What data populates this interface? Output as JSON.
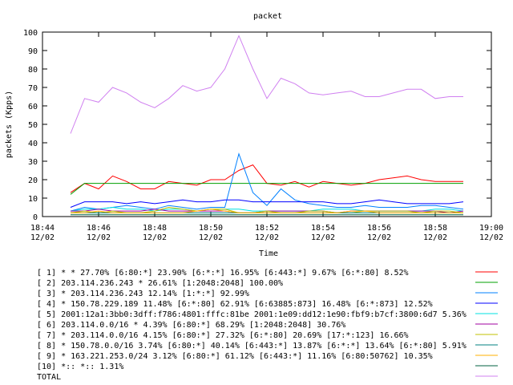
{
  "chart_data": {
    "type": "line",
    "title": "packet",
    "xlabel": "Time",
    "ylabel": "packets (Kpps)",
    "ylim": [
      0,
      100
    ],
    "xlim": [
      "18:44",
      "19:00"
    ],
    "yticks": [
      0,
      10,
      20,
      30,
      40,
      50,
      60,
      70,
      80,
      90,
      100
    ],
    "xticks": [
      {
        "time": "18:44",
        "date": "12/02"
      },
      {
        "time": "18:46",
        "date": "12/02"
      },
      {
        "time": "18:48",
        "date": "12/02"
      },
      {
        "time": "18:50",
        "date": "12/02"
      },
      {
        "time": "18:52",
        "date": "12/02"
      },
      {
        "time": "18:54",
        "date": "12/02"
      },
      {
        "time": "18:56",
        "date": "12/02"
      },
      {
        "time": "18:58",
        "date": "12/02"
      },
      {
        "time": "19:00",
        "date": "12/02"
      }
    ],
    "grid": false,
    "legend_position": "bottom",
    "x": [
      "18:45:00",
      "18:45:30",
      "18:46:00",
      "18:46:30",
      "18:47:00",
      "18:47:30",
      "18:48:00",
      "18:48:30",
      "18:49:00",
      "18:49:30",
      "18:50:00",
      "18:50:30",
      "18:51:00",
      "18:51:30",
      "18:52:00",
      "18:52:30",
      "18:53:00",
      "18:53:30",
      "18:54:00",
      "18:54:30",
      "18:55:00",
      "18:55:30",
      "18:56:00",
      "18:56:30",
      "18:57:00",
      "18:57:30",
      "18:58:00",
      "18:58:30",
      "18:59:00"
    ],
    "series": [
      {
        "name": "[ 1] * * 27.70%  [6:80:*] 23.90% [6:*:*] 16.95% [6:443:*] 9.67% [6:*:80] 8.52%",
        "color": "#ff0000",
        "values": [
          13,
          18,
          15,
          22,
          19,
          15,
          15,
          19,
          18,
          17,
          20,
          20,
          25,
          28,
          18,
          17,
          19,
          16,
          19,
          18,
          17,
          18,
          20,
          21,
          22,
          20,
          19,
          19,
          19
        ]
      },
      {
        "name": "[ 2] 203.114.236.243 * 26.61%  [1:2048:2048] 100.00%",
        "color": "#00a000",
        "values": [
          12,
          18,
          18,
          18,
          18,
          18,
          18,
          18,
          18,
          18,
          18,
          18,
          18,
          18,
          18,
          18,
          18,
          18,
          18,
          18,
          18,
          18,
          18,
          18,
          18,
          18,
          18,
          18,
          18
        ]
      },
      {
        "name": "[ 3] * 203.114.236.243 12.14%  [1:*:*] 92.99%",
        "color": "#0080ff",
        "values": [
          3,
          5,
          4,
          5,
          6,
          5,
          4,
          6,
          5,
          4,
          5,
          5,
          34,
          13,
          6,
          15,
          9,
          7,
          6,
          5,
          5,
          6,
          5,
          5,
          5,
          6,
          6,
          5,
          4
        ]
      },
      {
        "name": "[ 4] * 150.78.229.189 11.48%  [6:*:80] 62.91% [6:63885:873] 16.48% [6:*:873] 12.52%",
        "color": "#0000ff",
        "values": [
          5,
          8,
          8,
          8,
          7,
          8,
          7,
          8,
          9,
          8,
          8,
          9,
          9,
          8,
          8,
          8,
          8,
          8,
          8,
          7,
          7,
          8,
          9,
          8,
          7,
          7,
          7,
          7,
          8
        ]
      },
      {
        "name": "[ 5] 2001:12a1:3bb0:3dff:f786:4801:fffc:81be 2001:1e09:dd12:1e90:fbf9:b7cf:3800:6d7 5.36%",
        "color": "#00e0e0",
        "values": [
          3,
          4,
          4,
          5,
          4,
          4,
          3,
          4,
          4,
          3,
          4,
          4,
          4,
          3,
          3,
          3,
          3,
          3,
          4,
          4,
          4,
          3,
          3,
          3,
          3,
          3,
          4,
          4,
          3
        ]
      },
      {
        "name": "[ 6] 203.114.0.0/16 * 4.39%  [6:80:*] 68.29% [1:2048:2048] 30.76%",
        "color": "#a000a0",
        "values": [
          3,
          3,
          4,
          3,
          3,
          3,
          4,
          3,
          3,
          3,
          3,
          3,
          2,
          2,
          3,
          3,
          3,
          3,
          3,
          2,
          3,
          3,
          3,
          3,
          3,
          3,
          3,
          2,
          3
        ]
      },
      {
        "name": "[ 7] * 203.114.0.0/16 4.15%  [6:80:*] 27.32% [6:*:80] 20.69% [17:*:123] 16.66%",
        "color": "#c0c000",
        "values": [
          2,
          3,
          2,
          3,
          2,
          2,
          3,
          5,
          4,
          3,
          4,
          4,
          2,
          2,
          3,
          2,
          2,
          3,
          3,
          2,
          2,
          3,
          3,
          3,
          3,
          2,
          3,
          3,
          2
        ]
      },
      {
        "name": "[ 8] * 150.78.0.0/16 3.74%  [6:80:*] 40.14% [6:443:*] 13.87% [6:*:*] 13.64% [6:*:80] 5.91%",
        "color": "#008080",
        "values": [
          2,
          2,
          2,
          2,
          2,
          2,
          2,
          2,
          2,
          2,
          2,
          2,
          2,
          2,
          2,
          2,
          2,
          2,
          2,
          2,
          2,
          2,
          2,
          2,
          2,
          2,
          2,
          2,
          2
        ]
      },
      {
        "name": "[ 9] * 163.221.253.0/24 3.12%  [6:80:*] 61.12% [6:443:*] 11.16% [6:80:50762] 10.35%",
        "color": "#ffb000",
        "values": [
          2,
          2,
          3,
          2,
          2,
          2,
          2,
          2,
          2,
          3,
          4,
          3,
          2,
          2,
          2,
          2,
          2,
          2,
          2,
          2,
          3,
          3,
          2,
          2,
          2,
          2,
          2,
          2,
          2
        ]
      },
      {
        "name": "[10] *:: *:: 1.31%",
        "color": "#006040",
        "values": [
          1,
          1,
          1,
          1,
          1,
          1,
          1,
          1,
          1,
          1,
          1,
          1,
          1,
          1,
          1,
          1,
          1,
          1,
          1,
          1,
          1,
          1,
          1,
          1,
          1,
          1,
          1,
          1,
          1
        ]
      },
      {
        "name": "TOTAL",
        "color": "#d080f0",
        "values": [
          45,
          64,
          62,
          70,
          67,
          62,
          59,
          64,
          71,
          68,
          70,
          80,
          98,
          80,
          64,
          75,
          72,
          67,
          66,
          67,
          68,
          65,
          65,
          67,
          69,
          69,
          64,
          65,
          65
        ]
      }
    ]
  }
}
